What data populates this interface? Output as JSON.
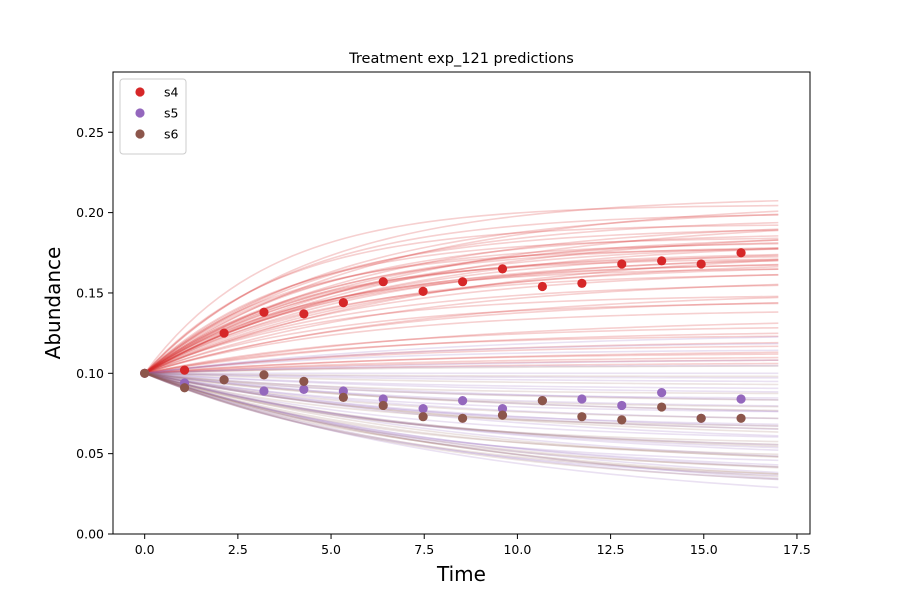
{
  "chart_data": {
    "type": "scatter",
    "title": "Treatment exp_121 predictions",
    "xlabel": "Time",
    "ylabel": "Abundance",
    "xlim": [
      -0.85,
      17.85
    ],
    "ylim": [
      0.0,
      0.2875
    ],
    "xticks": [
      "0.0",
      "2.5",
      "5.0",
      "7.5",
      "10.0",
      "12.5",
      "15.0",
      "17.5"
    ],
    "yticks": [
      "0.00",
      "0.05",
      "0.10",
      "0.15",
      "0.20",
      "0.25"
    ],
    "grid": false,
    "legend_position": "top-left",
    "series": [
      {
        "name": "s4",
        "color": "#d62728",
        "x": [
          0.0,
          1.07,
          2.13,
          3.2,
          4.27,
          5.33,
          6.4,
          7.47,
          8.53,
          9.6,
          10.67,
          11.73,
          12.8,
          13.87,
          14.93,
          16.0
        ],
        "y": [
          0.1,
          0.102,
          0.125,
          0.138,
          0.137,
          0.144,
          0.157,
          0.151,
          0.157,
          0.165,
          0.154,
          0.156,
          0.168,
          0.17,
          0.168,
          0.175
        ]
      },
      {
        "name": "s5",
        "color": "#9467bd",
        "x": [
          0.0,
          1.07,
          2.13,
          3.2,
          4.27,
          5.33,
          6.4,
          7.47,
          8.53,
          9.6,
          10.67,
          11.73,
          12.8,
          13.87,
          14.93,
          16.0
        ],
        "y": [
          0.1,
          0.094,
          0.096,
          0.089,
          0.09,
          0.089,
          0.084,
          0.078,
          0.083,
          0.078,
          0.083,
          0.084,
          0.08,
          0.088,
          0.072,
          0.084
        ]
      },
      {
        "name": "s6",
        "color": "#8c564b",
        "x": [
          0.0,
          1.07,
          2.13,
          3.2,
          4.27,
          5.33,
          6.4,
          7.47,
          8.53,
          9.6,
          10.67,
          11.73,
          12.8,
          13.87,
          14.93,
          16.0
        ],
        "y": [
          0.1,
          0.091,
          0.096,
          0.099,
          0.095,
          0.085,
          0.08,
          0.073,
          0.072,
          0.074,
          0.083,
          0.073,
          0.071,
          0.079,
          0.072,
          0.072
        ]
      }
    ],
    "prediction_curves": {
      "start_x": 0,
      "end_x": 17,
      "start_y": 0.1,
      "groups": [
        {
          "series": "s4",
          "color": "#d62728",
          "opacity": 0.22,
          "asymptotes": [
            0.21,
            0.208,
            0.205,
            0.203,
            0.2,
            0.198,
            0.197,
            0.195,
            0.193,
            0.191,
            0.19,
            0.188,
            0.187,
            0.185,
            0.184,
            0.183,
            0.182,
            0.181,
            0.18,
            0.179,
            0.178,
            0.177,
            0.176,
            0.175,
            0.174,
            0.173,
            0.172,
            0.171,
            0.17,
            0.169,
            0.168,
            0.166,
            0.165,
            0.163,
            0.16,
            0.157,
            0.152,
            0.149,
            0.147,
            0.145,
            0.14,
            0.135,
            0.13,
            0.127,
            0.124,
            0.121,
            0.118,
            0.115,
            0.113,
            0.111,
            0.109,
            0.107
          ],
          "rates": [
            0.22,
            0.16,
            0.3,
            0.19,
            0.25,
            0.14,
            0.2,
            0.17,
            0.28,
            0.23,
            0.15,
            0.21,
            0.18,
            0.26,
            0.2,
            0.16,
            0.24,
            0.19,
            0.22,
            0.13,
            0.27,
            0.18,
            0.21,
            0.17,
            0.23,
            0.19,
            0.25,
            0.16,
            0.2,
            0.22,
            0.18,
            0.24,
            0.17,
            0.21,
            0.15,
            0.19,
            0.14,
            0.22,
            0.16,
            0.2,
            0.18,
            0.13,
            0.17,
            0.15,
            0.19,
            0.14,
            0.16,
            0.12,
            0.15,
            0.13,
            0.14,
            0.12
          ]
        },
        {
          "series": "s5",
          "color": "#9467bd",
          "opacity": 0.2,
          "asymptotes": [
            0.126,
            0.12,
            0.115,
            0.11,
            0.105,
            0.1,
            0.097,
            0.094,
            0.09,
            0.087,
            0.084,
            0.081,
            0.078,
            0.075,
            0.072,
            0.069,
            0.066,
            0.063,
            0.06,
            0.057,
            0.054,
            0.051,
            0.048,
            0.045,
            0.042,
            0.039,
            0.036,
            0.033,
            0.03,
            0.027,
            0.024,
            0.02,
            0.016
          ],
          "rates": [
            0.12,
            0.15,
            0.18,
            0.1,
            0.2,
            0.14,
            0.17,
            0.11,
            0.16,
            0.13,
            0.19,
            0.12,
            0.15,
            0.18,
            0.11,
            0.14,
            0.16,
            0.13,
            0.12,
            0.15,
            0.11,
            0.14,
            0.13,
            0.12,
            0.16,
            0.11,
            0.13,
            0.12,
            0.14,
            0.11,
            0.12,
            0.1,
            0.11
          ]
        },
        {
          "series": "s6",
          "color": "#8c564b",
          "opacity": 0.17,
          "asymptotes": [
            0.105,
            0.098,
            0.092,
            0.087,
            0.082,
            0.078,
            0.074,
            0.07,
            0.066,
            0.062,
            0.058,
            0.055,
            0.052,
            0.049,
            0.046,
            0.043,
            0.04,
            0.037,
            0.034,
            0.031,
            0.028,
            0.026,
            0.024
          ],
          "rates": [
            0.14,
            0.18,
            0.12,
            0.2,
            0.15,
            0.17,
            0.13,
            0.16,
            0.19,
            0.14,
            0.12,
            0.17,
            0.15,
            0.13,
            0.16,
            0.14,
            0.12,
            0.15,
            0.13,
            0.14,
            0.12,
            0.13,
            0.11
          ]
        }
      ]
    }
  }
}
